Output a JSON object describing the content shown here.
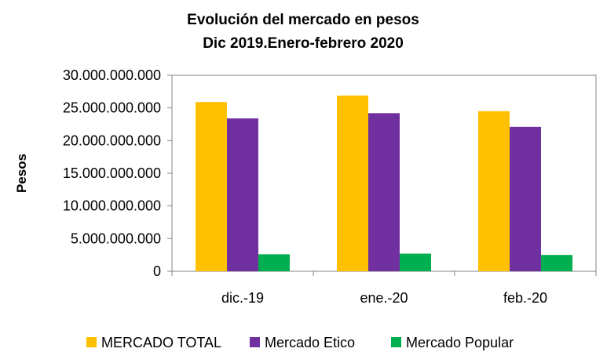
{
  "chart_data": {
    "type": "bar",
    "title": "Evolución del mercado en pesos",
    "subtitle": "Dic 2019.Enero-febrero 2020",
    "xlabel": "",
    "ylabel": "Pesos",
    "categories": [
      "dic.-19",
      "ene.-20",
      "feb.-20"
    ],
    "series": [
      {
        "name": "MERCADO TOTAL",
        "color": "#FFC000",
        "values": [
          25900000000,
          26900000000,
          24500000000
        ]
      },
      {
        "name": "Mercado Etico",
        "color": "#7030A0",
        "values": [
          23400000000,
          24200000000,
          22100000000
        ]
      },
      {
        "name": "Mercado Popular",
        "color": "#00B050",
        "values": [
          2600000000,
          2700000000,
          2500000000
        ]
      }
    ],
    "ylim": [
      0,
      30000000000
    ],
    "yticks": [
      0,
      5000000000,
      10000000000,
      15000000000,
      20000000000,
      25000000000,
      30000000000
    ],
    "ytick_labels": [
      "0",
      "5.000.000.000",
      "10.000.000.000",
      "15.000.000.000",
      "20.000.000.000",
      "25.000.000.000",
      "30.000.000.000"
    ],
    "grid": false,
    "legend_position": "bottom"
  }
}
